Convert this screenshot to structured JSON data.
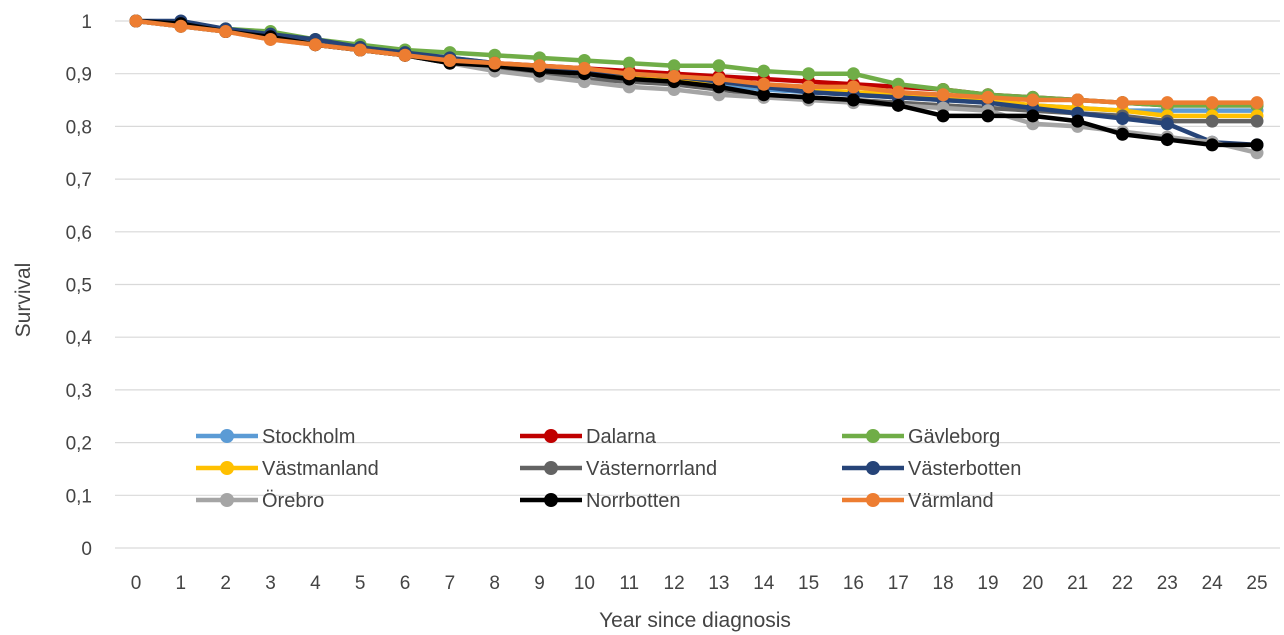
{
  "chart_data": {
    "type": "line",
    "title": "",
    "xlabel": "Year since diagnosis",
    "ylabel": "Survival",
    "x": [
      0,
      1,
      2,
      3,
      4,
      5,
      6,
      7,
      8,
      9,
      10,
      11,
      12,
      13,
      14,
      15,
      16,
      17,
      18,
      19,
      20,
      21,
      22,
      23,
      24,
      25
    ],
    "ylim": [
      0,
      1
    ],
    "y_ticks": [
      "0",
      "0,1",
      "0,2",
      "0,3",
      "0,4",
      "0,5",
      "0,6",
      "0,7",
      "0,8",
      "0,9",
      "1"
    ],
    "grid": true,
    "legend_position": "bottom-inside",
    "series": [
      {
        "name": "Stockholm",
        "color": "#5b9bd5",
        "values": [
          1,
          0.99,
          0.98,
          0.97,
          0.96,
          0.95,
          0.94,
          0.93,
          0.92,
          0.91,
          0.9,
          0.89,
          0.89,
          0.88,
          0.87,
          0.865,
          0.86,
          0.855,
          0.85,
          0.845,
          0.84,
          0.835,
          0.83,
          0.83,
          0.83,
          0.83
        ]
      },
      {
        "name": "Dalarna",
        "color": "#c00000",
        "values": [
          1,
          0.99,
          0.98,
          0.97,
          0.955,
          0.945,
          0.935,
          0.925,
          0.92,
          0.915,
          0.91,
          0.905,
          0.9,
          0.895,
          0.89,
          0.885,
          0.88,
          0.875,
          0.87,
          0.86,
          0.855,
          0.85,
          0.845,
          0.84,
          0.84,
          0.84
        ]
      },
      {
        "name": "Gävleborg",
        "color": "#70ad47",
        "values": [
          1,
          0.995,
          0.985,
          0.98,
          0.965,
          0.955,
          0.945,
          0.94,
          0.935,
          0.93,
          0.925,
          0.92,
          0.915,
          0.915,
          0.905,
          0.9,
          0.9,
          0.88,
          0.87,
          0.86,
          0.855,
          0.85,
          0.845,
          0.84,
          0.84,
          0.84
        ]
      },
      {
        "name": "Västmanland",
        "color": "#ffc000",
        "values": [
          1,
          0.99,
          0.98,
          0.97,
          0.955,
          0.945,
          0.935,
          0.925,
          0.92,
          0.91,
          0.905,
          0.895,
          0.89,
          0.885,
          0.875,
          0.87,
          0.865,
          0.86,
          0.855,
          0.85,
          0.84,
          0.835,
          0.83,
          0.82,
          0.82,
          0.82
        ]
      },
      {
        "name": "Västernorrland",
        "color": "#636363",
        "values": [
          1,
          0.99,
          0.98,
          0.97,
          0.955,
          0.945,
          0.935,
          0.92,
          0.91,
          0.9,
          0.89,
          0.885,
          0.88,
          0.87,
          0.86,
          0.855,
          0.85,
          0.845,
          0.84,
          0.835,
          0.83,
          0.825,
          0.82,
          0.81,
          0.81,
          0.81
        ]
      },
      {
        "name": "Västerbotten",
        "color": "#264478",
        "values": [
          1,
          1,
          0.985,
          0.975,
          0.965,
          0.95,
          0.94,
          0.93,
          0.92,
          0.91,
          0.905,
          0.9,
          0.895,
          0.885,
          0.875,
          0.865,
          0.86,
          0.855,
          0.85,
          0.845,
          0.835,
          0.825,
          0.815,
          0.805,
          0.77,
          0.765
        ]
      },
      {
        "name": "Örebro",
        "color": "#a5a5a5",
        "values": [
          1,
          0.99,
          0.98,
          0.965,
          0.955,
          0.945,
          0.935,
          0.92,
          0.905,
          0.895,
          0.885,
          0.875,
          0.87,
          0.86,
          0.855,
          0.85,
          0.845,
          0.84,
          0.835,
          0.83,
          0.805,
          0.8,
          0.79,
          0.78,
          0.77,
          0.75
        ]
      },
      {
        "name": "Norrbotten",
        "color": "#000000",
        "values": [
          1,
          0.995,
          0.98,
          0.97,
          0.955,
          0.945,
          0.935,
          0.92,
          0.915,
          0.905,
          0.9,
          0.89,
          0.885,
          0.875,
          0.86,
          0.855,
          0.85,
          0.84,
          0.82,
          0.82,
          0.82,
          0.81,
          0.785,
          0.775,
          0.765,
          0.765
        ]
      },
      {
        "name": "Värmland",
        "color": "#ed7d31",
        "values": [
          1,
          0.99,
          0.98,
          0.965,
          0.955,
          0.945,
          0.935,
          0.925,
          0.92,
          0.915,
          0.91,
          0.9,
          0.895,
          0.89,
          0.88,
          0.875,
          0.875,
          0.865,
          0.86,
          0.855,
          0.85,
          0.85,
          0.845,
          0.845,
          0.845,
          0.845
        ]
      }
    ]
  }
}
